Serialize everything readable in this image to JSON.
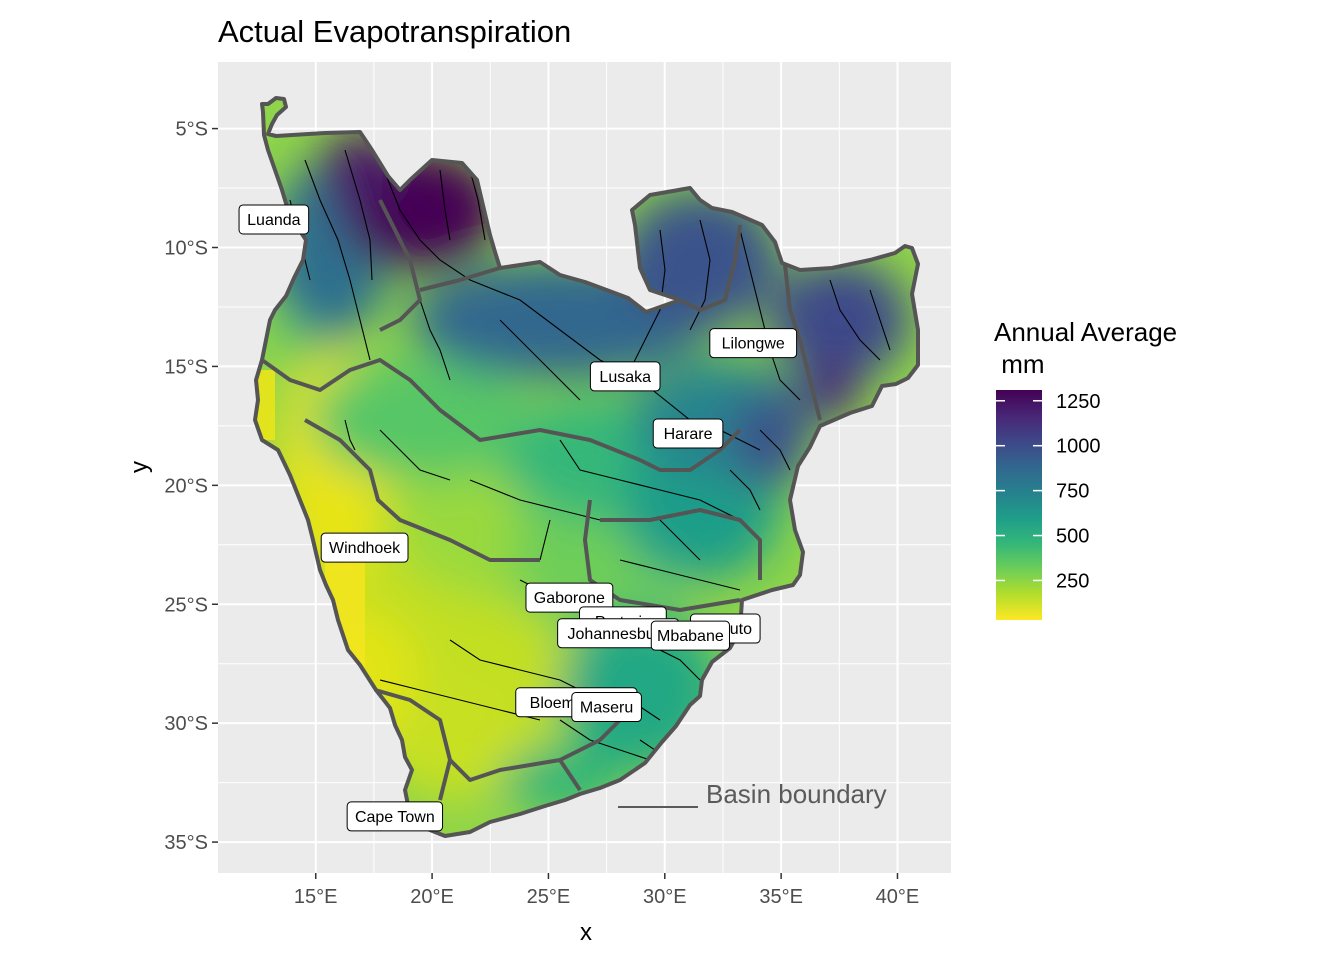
{
  "title": "Actual Evapotranspiration",
  "chart_data": {
    "type": "map",
    "title": "Actual Evapotranspiration",
    "xlabel": "x",
    "ylabel": "y",
    "xlim": [
      10.8,
      42.3
    ],
    "ylim": [
      -36.3,
      -2.2
    ],
    "x_ticks": [
      {
        "value": 15,
        "label": "15°E"
      },
      {
        "value": 20,
        "label": "20°E"
      },
      {
        "value": 25,
        "label": "25°E"
      },
      {
        "value": 30,
        "label": "30°E"
      },
      {
        "value": 35,
        "label": "35°E"
      },
      {
        "value": 40,
        "label": "40°E"
      }
    ],
    "y_ticks": [
      {
        "value": -5,
        "label": "5°S"
      },
      {
        "value": -10,
        "label": "10°S"
      },
      {
        "value": -15,
        "label": "15°S"
      },
      {
        "value": -20,
        "label": "20°S"
      },
      {
        "value": -25,
        "label": "25°S"
      },
      {
        "value": -30,
        "label": "30°S"
      },
      {
        "value": -35,
        "label": "35°S"
      }
    ],
    "grid": true,
    "legend": {
      "title_line1": "Annual Average",
      "title_line2": " mm",
      "position": "right",
      "range": [
        30,
        1310
      ],
      "ticks": [
        {
          "value": 1250,
          "label": "1250"
        },
        {
          "value": 1000,
          "label": "1000"
        },
        {
          "value": 750,
          "label": "750"
        },
        {
          "value": 500,
          "label": "500"
        },
        {
          "value": 250,
          "label": "250"
        }
      ],
      "colors": [
        "#fde725",
        "#b5de2b",
        "#6ece58",
        "#35b779",
        "#1f9e89",
        "#26828e",
        "#31688e",
        "#3e4989",
        "#482878",
        "#440154"
      ]
    },
    "annotation": {
      "text": "Basin boundary",
      "color": "#5a5a5a"
    },
    "cities": [
      {
        "name": "Luanda",
        "lon": 13.2,
        "lat": -8.8
      },
      {
        "name": "Lilongwe",
        "lon": 33.8,
        "lat": -14.0
      },
      {
        "name": "Lusaka",
        "lon": 28.3,
        "lat": -15.4
      },
      {
        "name": "Harare",
        "lon": 31.0,
        "lat": -17.8
      },
      {
        "name": "Windhoek",
        "lon": 17.1,
        "lat": -22.6
      },
      {
        "name": "Gaborone",
        "lon": 25.9,
        "lat": -24.7
      },
      {
        "name": "Pretoria",
        "lon": 28.2,
        "lat": -25.7
      },
      {
        "name": "Johannesburg",
        "lon": 28.0,
        "lat": -26.2
      },
      {
        "name": "Maputo",
        "lon": 32.6,
        "lat": -26.0
      },
      {
        "name": "Mbabane",
        "lon": 31.1,
        "lat": -26.3
      },
      {
        "name": "Bloemfontein",
        "lon": 26.2,
        "lat": -29.1
      },
      {
        "name": "Maseru",
        "lon": 27.5,
        "lat": -29.3
      },
      {
        "name": "Cape Town",
        "lon": 18.4,
        "lat": -33.9
      }
    ]
  }
}
